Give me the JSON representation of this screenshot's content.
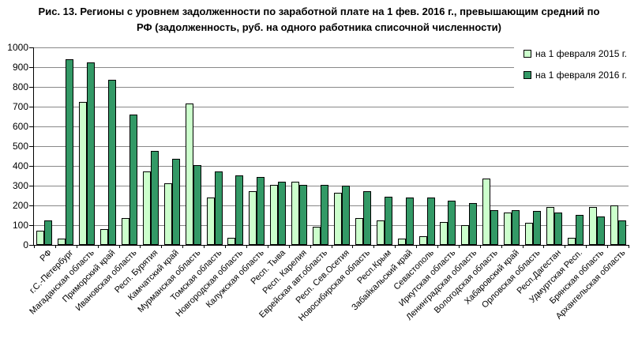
{
  "chart_data": {
    "type": "bar",
    "title": "Рис. 13. Регионы с уровнем задолженности по заработной плате на 1 фев. 2016 г., превышающим средний по РФ (задолженность, руб. на одного работника списочной численности)",
    "categories": [
      "РФ",
      "г.С.-Петербург",
      "Магаданская область",
      "Приморский край",
      "Ивановская область",
      "Респ. Бурятия",
      "Камчатский край",
      "Мурманская область",
      "Томская область",
      "Новгородская область",
      "Калужская область",
      "Респ. Тыва",
      "Респ. Карелия",
      "Еврейская авт.область",
      "Респ. Сев.Осетия",
      "Новосибирская область",
      "Респ.Крым",
      "Забайкальский край",
      "Севастополь",
      "Иркутская область",
      "Ленинградская область",
      "Вологодская область",
      "Хабаровский край",
      "Орловская область",
      "Респ.Дагестан",
      "Удмуртская Респ.",
      "Брянская область",
      "Архангельская область"
    ],
    "series": [
      {
        "name": "на 1 февраля 2015 г.",
        "year": "2015",
        "color": "#CCFFCC",
        "values": [
          70,
          30,
          725,
          80,
          135,
          370,
          310,
          715,
          240,
          35,
          270,
          305,
          320,
          90,
          265,
          135,
          125,
          30,
          45,
          115,
          100,
          335,
          165,
          110,
          190,
          35,
          190,
          200
        ]
      },
      {
        "name": "на 1 февраля 2016 г.",
        "year": "2016",
        "color": "#339966",
        "values": [
          125,
          940,
          925,
          835,
          660,
          475,
          435,
          405,
          370,
          350,
          345,
          320,
          305,
          303,
          298,
          270,
          245,
          240,
          238,
          225,
          210,
          176,
          174,
          172,
          165,
          150,
          145,
          125
        ]
      }
    ],
    "xlabel": "",
    "ylabel": "",
    "ylim": [
      0,
      1000
    ],
    "yticks": [
      0,
      100,
      200,
      300,
      400,
      500,
      600,
      700,
      800,
      900,
      1000
    ],
    "grid": true,
    "legend_position": "top-right"
  },
  "colors": {
    "bar_2015": "#CCFFCC",
    "bar_2016": "#339966",
    "bar_border": "#000000",
    "gridline": "#888888",
    "axis": "#000000",
    "text": "#000000",
    "background": "#FFFFFF"
  }
}
